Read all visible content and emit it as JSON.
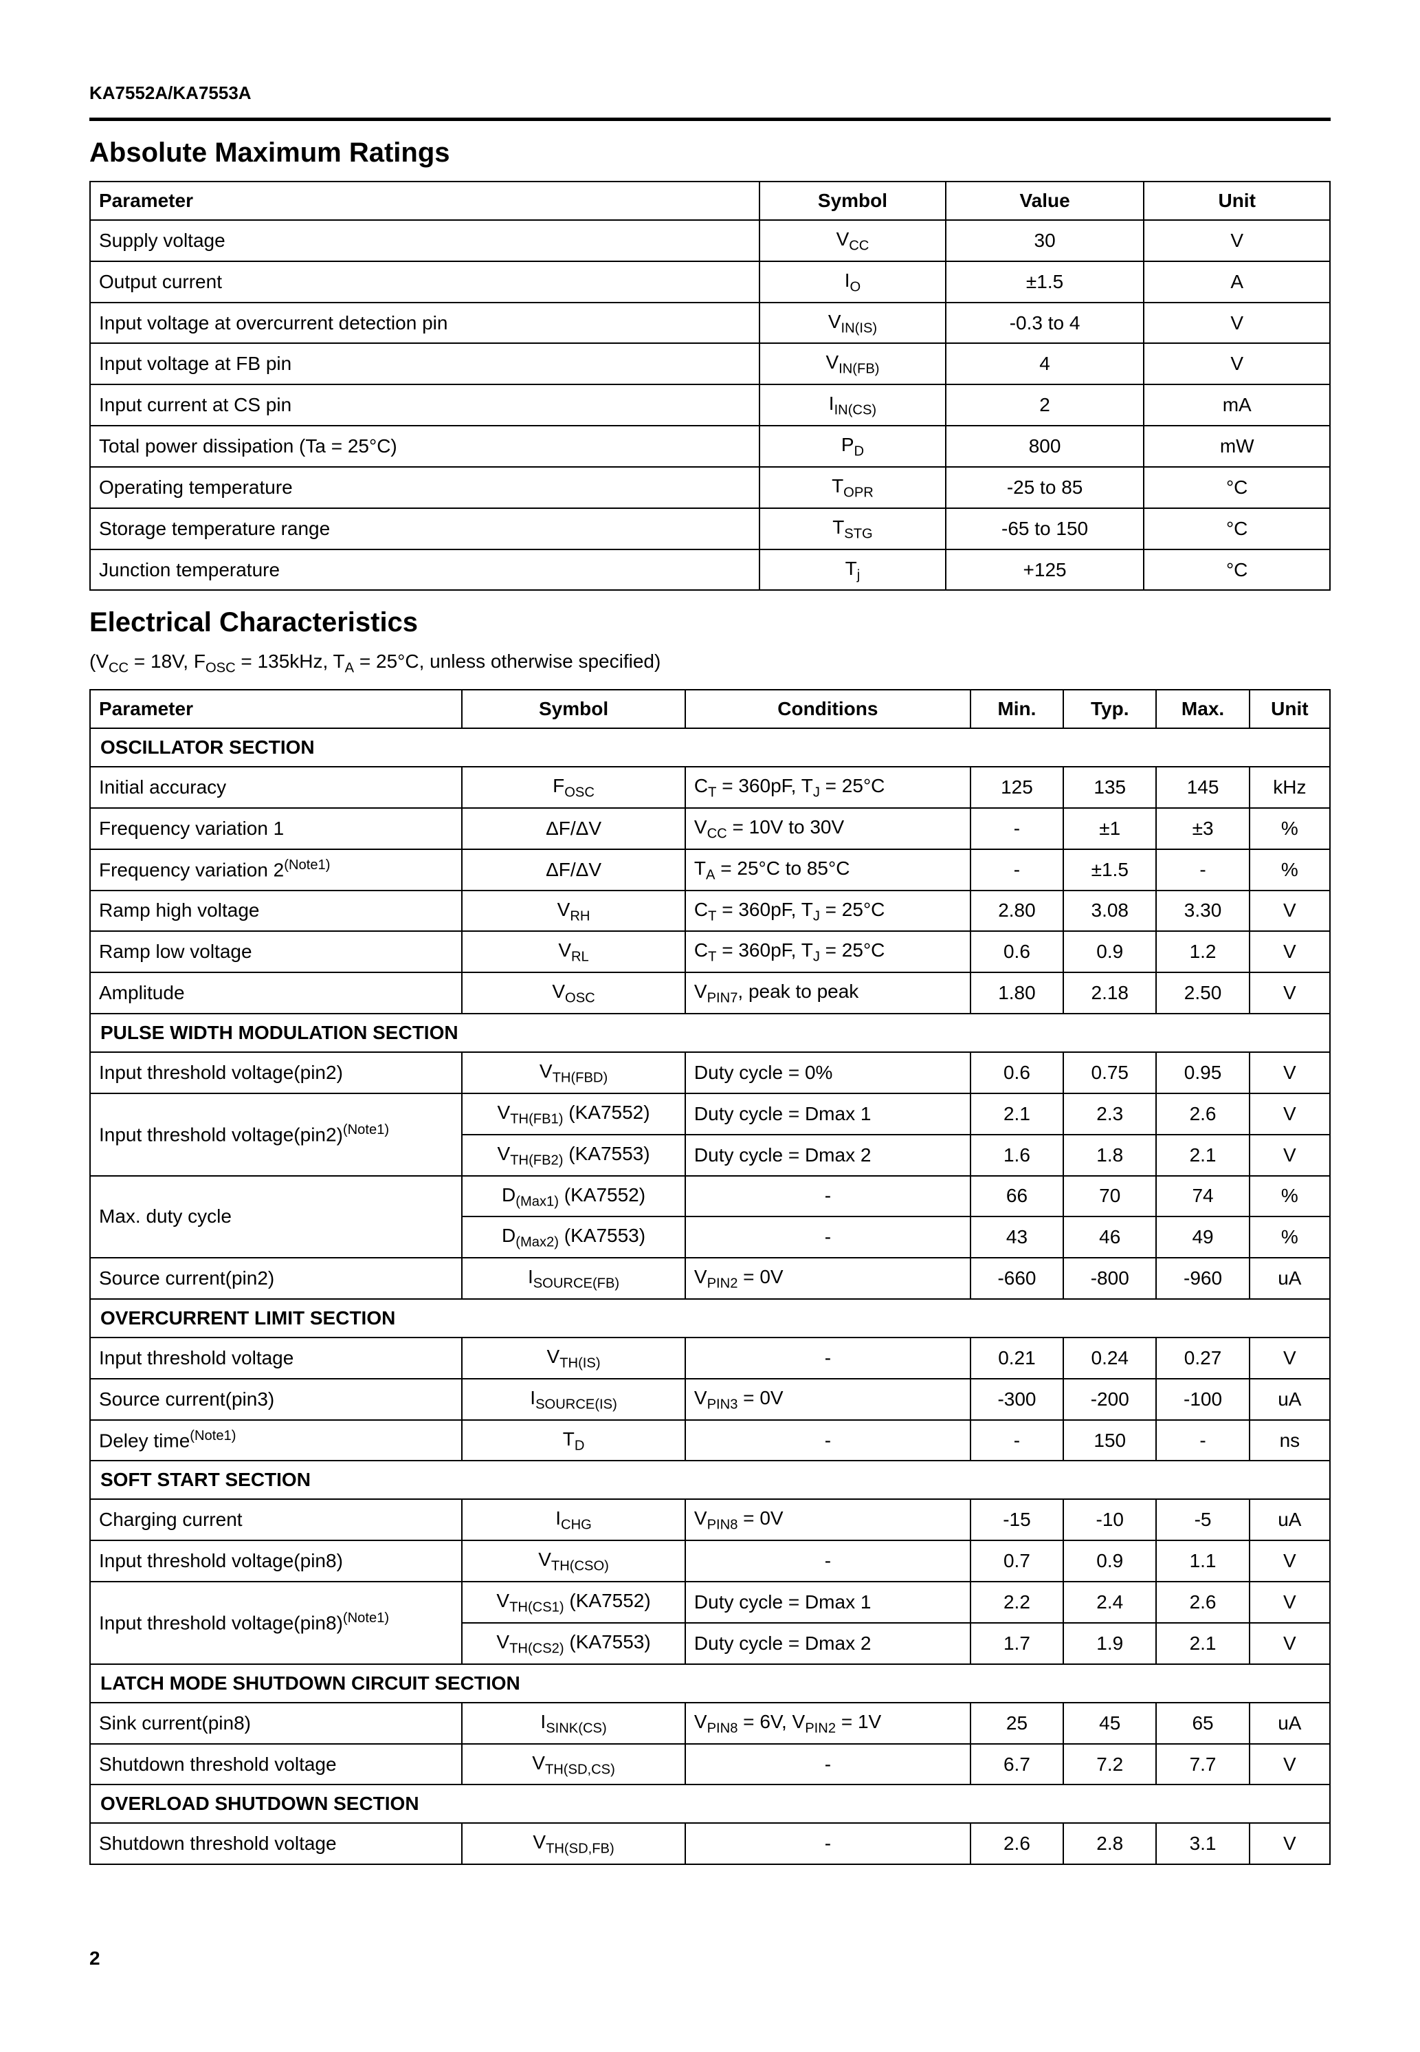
{
  "part_number": "KA7552A/KA7553A",
  "page_number": "2",
  "section1_title": "Absolute Maximum Ratings",
  "section2_title": "Electrical Characteristics",
  "conditions_prefix": "(V",
  "conditions_cc": "CC",
  "conditions_mid1": " = 18V, F",
  "conditions_osc": "OSC",
  "conditions_mid2": " = 135kHz, T",
  "conditions_a": "A",
  "conditions_suffix": " = 25°C, unless otherwise specified)",
  "t1": {
    "headers": {
      "parameter": "Parameter",
      "symbol": "Symbol",
      "value": "Value",
      "unit": "Unit"
    },
    "rows": [
      {
        "param": "Supply voltage",
        "sym_main": "V",
        "sym_sub": "CC",
        "value": "30",
        "unit": "V"
      },
      {
        "param": "Output current",
        "sym_main": "I",
        "sym_sub": "O",
        "value": "±1.5",
        "unit": "A"
      },
      {
        "param": "Input voltage at overcurrent detection pin",
        "sym_main": "V",
        "sym_sub": "IN(IS)",
        "value": "-0.3 to 4",
        "unit": "V"
      },
      {
        "param": "Input voltage at FB pin",
        "sym_main": "V",
        "sym_sub": "IN(FB)",
        "value": "4",
        "unit": "V"
      },
      {
        "param": "Input current at CS pin",
        "sym_main": "I",
        "sym_sub": "IN(CS)",
        "value": "2",
        "unit": "mA"
      },
      {
        "param": "Total power dissipation (Ta = 25°C)",
        "sym_main": "P",
        "sym_sub": "D",
        "value": "800",
        "unit": "mW"
      },
      {
        "param": "Operating temperature",
        "sym_main": "T",
        "sym_sub": "OPR",
        "value": "-25 to 85",
        "unit": "°C"
      },
      {
        "param": "Storage temperature range",
        "sym_main": "T",
        "sym_sub": "STG",
        "value": "-65 to 150",
        "unit": "°C"
      },
      {
        "param": "Junction temperature",
        "sym_main": "T",
        "sym_sub": "j",
        "value": "+125",
        "unit": "°C"
      }
    ]
  },
  "t2": {
    "headers": {
      "parameter": "Parameter",
      "symbol": "Symbol",
      "conditions": "Conditions",
      "min": "Min.",
      "typ": "Typ.",
      "max": "Max.",
      "unit": "Unit"
    },
    "sec_osc": "OSCILLATOR SECTION",
    "sec_pwm": "PULSE WIDTH MODULATION SECTION",
    "sec_ocl": "OVERCURRENT LIMIT SECTION",
    "sec_ss": "SOFT START SECTION",
    "sec_latch": "LATCH MODE SHUTDOWN CIRCUIT SECTION",
    "sec_ovl": "OVERLOAD SHUTDOWN SECTION",
    "rows": {
      "r1": {
        "param": "Initial accuracy",
        "sym_main": "F",
        "sym_sub": "OSC",
        "cond_html": "C<span class='sub'>T</span> = 360pF, T<span class='sub'>J</span> = 25°C",
        "min": "125",
        "typ": "135",
        "max": "145",
        "unit": "kHz"
      },
      "r2": {
        "param": "Frequency variation 1",
        "sym_main": "ΔF/ΔV",
        "sym_sub": "",
        "cond_html": "V<span class='sub'>CC</span> = 10V to 30V",
        "min": "-",
        "typ": "±1",
        "max": "±3",
        "unit": "%"
      },
      "r3": {
        "param_html": "Frequency variation 2<span class='sup'>(Note1)</span>",
        "sym_main": "ΔF/ΔV",
        "sym_sub": "",
        "cond_html": "T<span class='sub'>A</span> = 25°C to 85°C",
        "min": "-",
        "typ": "±1.5",
        "max": "-",
        "unit": "%"
      },
      "r4": {
        "param": "Ramp high voltage",
        "sym_main": "V",
        "sym_sub": "RH",
        "cond_html": "C<span class='sub'>T</span> = 360pF, T<span class='sub'>J</span> = 25°C",
        "min": "2.80",
        "typ": "3.08",
        "max": "3.30",
        "unit": "V"
      },
      "r5": {
        "param": "Ramp low voltage",
        "sym_main": "V",
        "sym_sub": "RL",
        "cond_html": "C<span class='sub'>T</span> = 360pF, T<span class='sub'>J</span> = 25°C",
        "min": "0.6",
        "typ": "0.9",
        "max": "1.2",
        "unit": "V"
      },
      "r6": {
        "param": "Amplitude",
        "sym_main": "V",
        "sym_sub": "OSC",
        "cond_html": "V<span class='sub'>PIN7</span>, peak to peak",
        "min": "1.80",
        "typ": "2.18",
        "max": "2.50",
        "unit": "V"
      },
      "r7": {
        "param": "Input threshold voltage(pin2)",
        "sym_main": "V",
        "sym_sub": "TH(FBD)",
        "cond": "Duty cycle = 0%",
        "min": "0.6",
        "typ": "0.75",
        "max": "0.95",
        "unit": "V"
      },
      "r8a": {
        "param_html": "Input threshold voltage(pin2)<span class='sup'>(Note1)</span>",
        "sym_html": "V<span class='sub'>TH(FB1)</span> (KA7552)",
        "cond": "Duty cycle = Dmax 1",
        "min": "2.1",
        "typ": "2.3",
        "max": "2.6",
        "unit": "V"
      },
      "r8b": {
        "sym_html": "V<span class='sub'>TH(FB2)</span> (KA7553)",
        "cond": "Duty cycle = Dmax 2",
        "min": "1.6",
        "typ": "1.8",
        "max": "2.1",
        "unit": "V"
      },
      "r9a": {
        "param": "Max. duty cycle",
        "sym_html": "D<span class='sub'>(Max1)</span> (KA7552)",
        "cond": "-",
        "min": "66",
        "typ": "70",
        "max": "74",
        "unit": "%"
      },
      "r9b": {
        "sym_html": "D<span class='sub'>(Max2)</span> (KA7553)",
        "cond": "-",
        "min": "43",
        "typ": "46",
        "max": "49",
        "unit": "%"
      },
      "r10": {
        "param": "Source current(pin2)",
        "sym_main": "I",
        "sym_sub": "SOURCE(FB)",
        "cond_html": "V<span class='sub'>PIN2</span> = 0V",
        "min": "-660",
        "typ": "-800",
        "max": "-960",
        "unit": "uA"
      },
      "r11": {
        "param": "Input threshold voltage",
        "sym_main": "V",
        "sym_sub": "TH(IS)",
        "cond": "-",
        "min": "0.21",
        "typ": "0.24",
        "max": "0.27",
        "unit": "V"
      },
      "r12": {
        "param": "Source current(pin3)",
        "sym_main": "I",
        "sym_sub": "SOURCE(IS)",
        "cond_html": "V<span class='sub'>PIN3</span> = 0V",
        "min": "-300",
        "typ": "-200",
        "max": "-100",
        "unit": "uA"
      },
      "r13": {
        "param_html": "Deley time<span class='sup'>(Note1)</span>",
        "sym_main": "T",
        "sym_sub": "D",
        "cond": "-",
        "min": "-",
        "typ": "150",
        "max": "-",
        "unit": "ns"
      },
      "r14": {
        "param": "Charging current",
        "sym_main": "I",
        "sym_sub": "CHG",
        "cond_html": "V<span class='sub'>PIN8</span> = 0V",
        "min": "-15",
        "typ": "-10",
        "max": "-5",
        "unit": "uA"
      },
      "r15": {
        "param": "Input threshold voltage(pin8)",
        "sym_main": "V",
        "sym_sub": "TH(CSO)",
        "cond": "-",
        "min": "0.7",
        "typ": "0.9",
        "max": "1.1",
        "unit": "V"
      },
      "r16a": {
        "param_html": "Input threshold voltage(pin8)<span class='sup'>(Note1)</span>",
        "sym_html": "V<span class='sub'>TH(CS1)</span> (KA7552)",
        "cond": "Duty cycle = Dmax 1",
        "min": "2.2",
        "typ": "2.4",
        "max": "2.6",
        "unit": "V"
      },
      "r16b": {
        "sym_html": "V<span class='sub'>TH(CS2)</span> (KA7553)",
        "cond": "Duty cycle = Dmax 2",
        "min": "1.7",
        "typ": "1.9",
        "max": "2.1",
        "unit": "V"
      },
      "r17": {
        "param": "Sink current(pin8)",
        "sym_main": "I",
        "sym_sub": "SINK(CS)",
        "cond_html": "V<span class='sub'>PIN8</span> = 6V, V<span class='sub'>PIN2</span> = 1V",
        "min": "25",
        "typ": "45",
        "max": "65",
        "unit": "uA"
      },
      "r18": {
        "param": "Shutdown threshold voltage",
        "sym_main": "V",
        "sym_sub": "TH(SD,CS)",
        "cond": "-",
        "min": "6.7",
        "typ": "7.2",
        "max": "7.7",
        "unit": "V"
      },
      "r19": {
        "param": "Shutdown threshold voltage",
        "sym_main": "V",
        "sym_sub": "TH(SD,FB)",
        "cond": "-",
        "min": "2.6",
        "typ": "2.8",
        "max": "3.1",
        "unit": "V"
      }
    }
  }
}
